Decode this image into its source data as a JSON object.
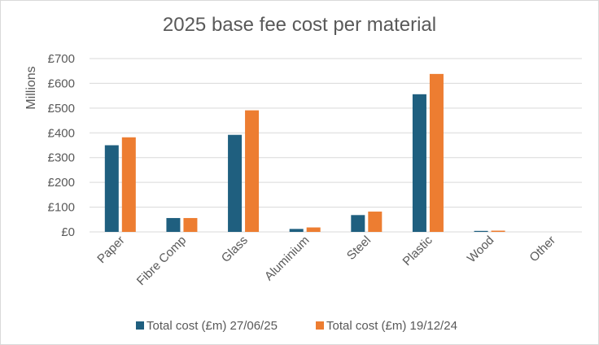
{
  "chart_data": {
    "type": "bar",
    "title": "2025 base fee cost per material",
    "ylabel": "Millions",
    "xlabel": "",
    "ylim": [
      0,
      700
    ],
    "ytick_labels": [
      "£0",
      "£100",
      "£200",
      "£300",
      "£400",
      "£500",
      "£600",
      "£700"
    ],
    "categories": [
      "Paper",
      "Fibre Comp",
      "Glass",
      "Aluminium",
      "Steel",
      "Plastic",
      "Wood",
      "Other"
    ],
    "series": [
      {
        "name": "Total cost (£m) 27/06/25",
        "color": "#1f5f7f",
        "values": [
          350,
          56,
          392,
          12,
          68,
          556,
          4,
          0
        ]
      },
      {
        "name": "Total cost (£m) 19/12/24",
        "color": "#ed7d31",
        "values": [
          382,
          56,
          491,
          18,
          82,
          638,
          5,
          0
        ]
      }
    ],
    "grid": true,
    "legend_position": "bottom"
  }
}
